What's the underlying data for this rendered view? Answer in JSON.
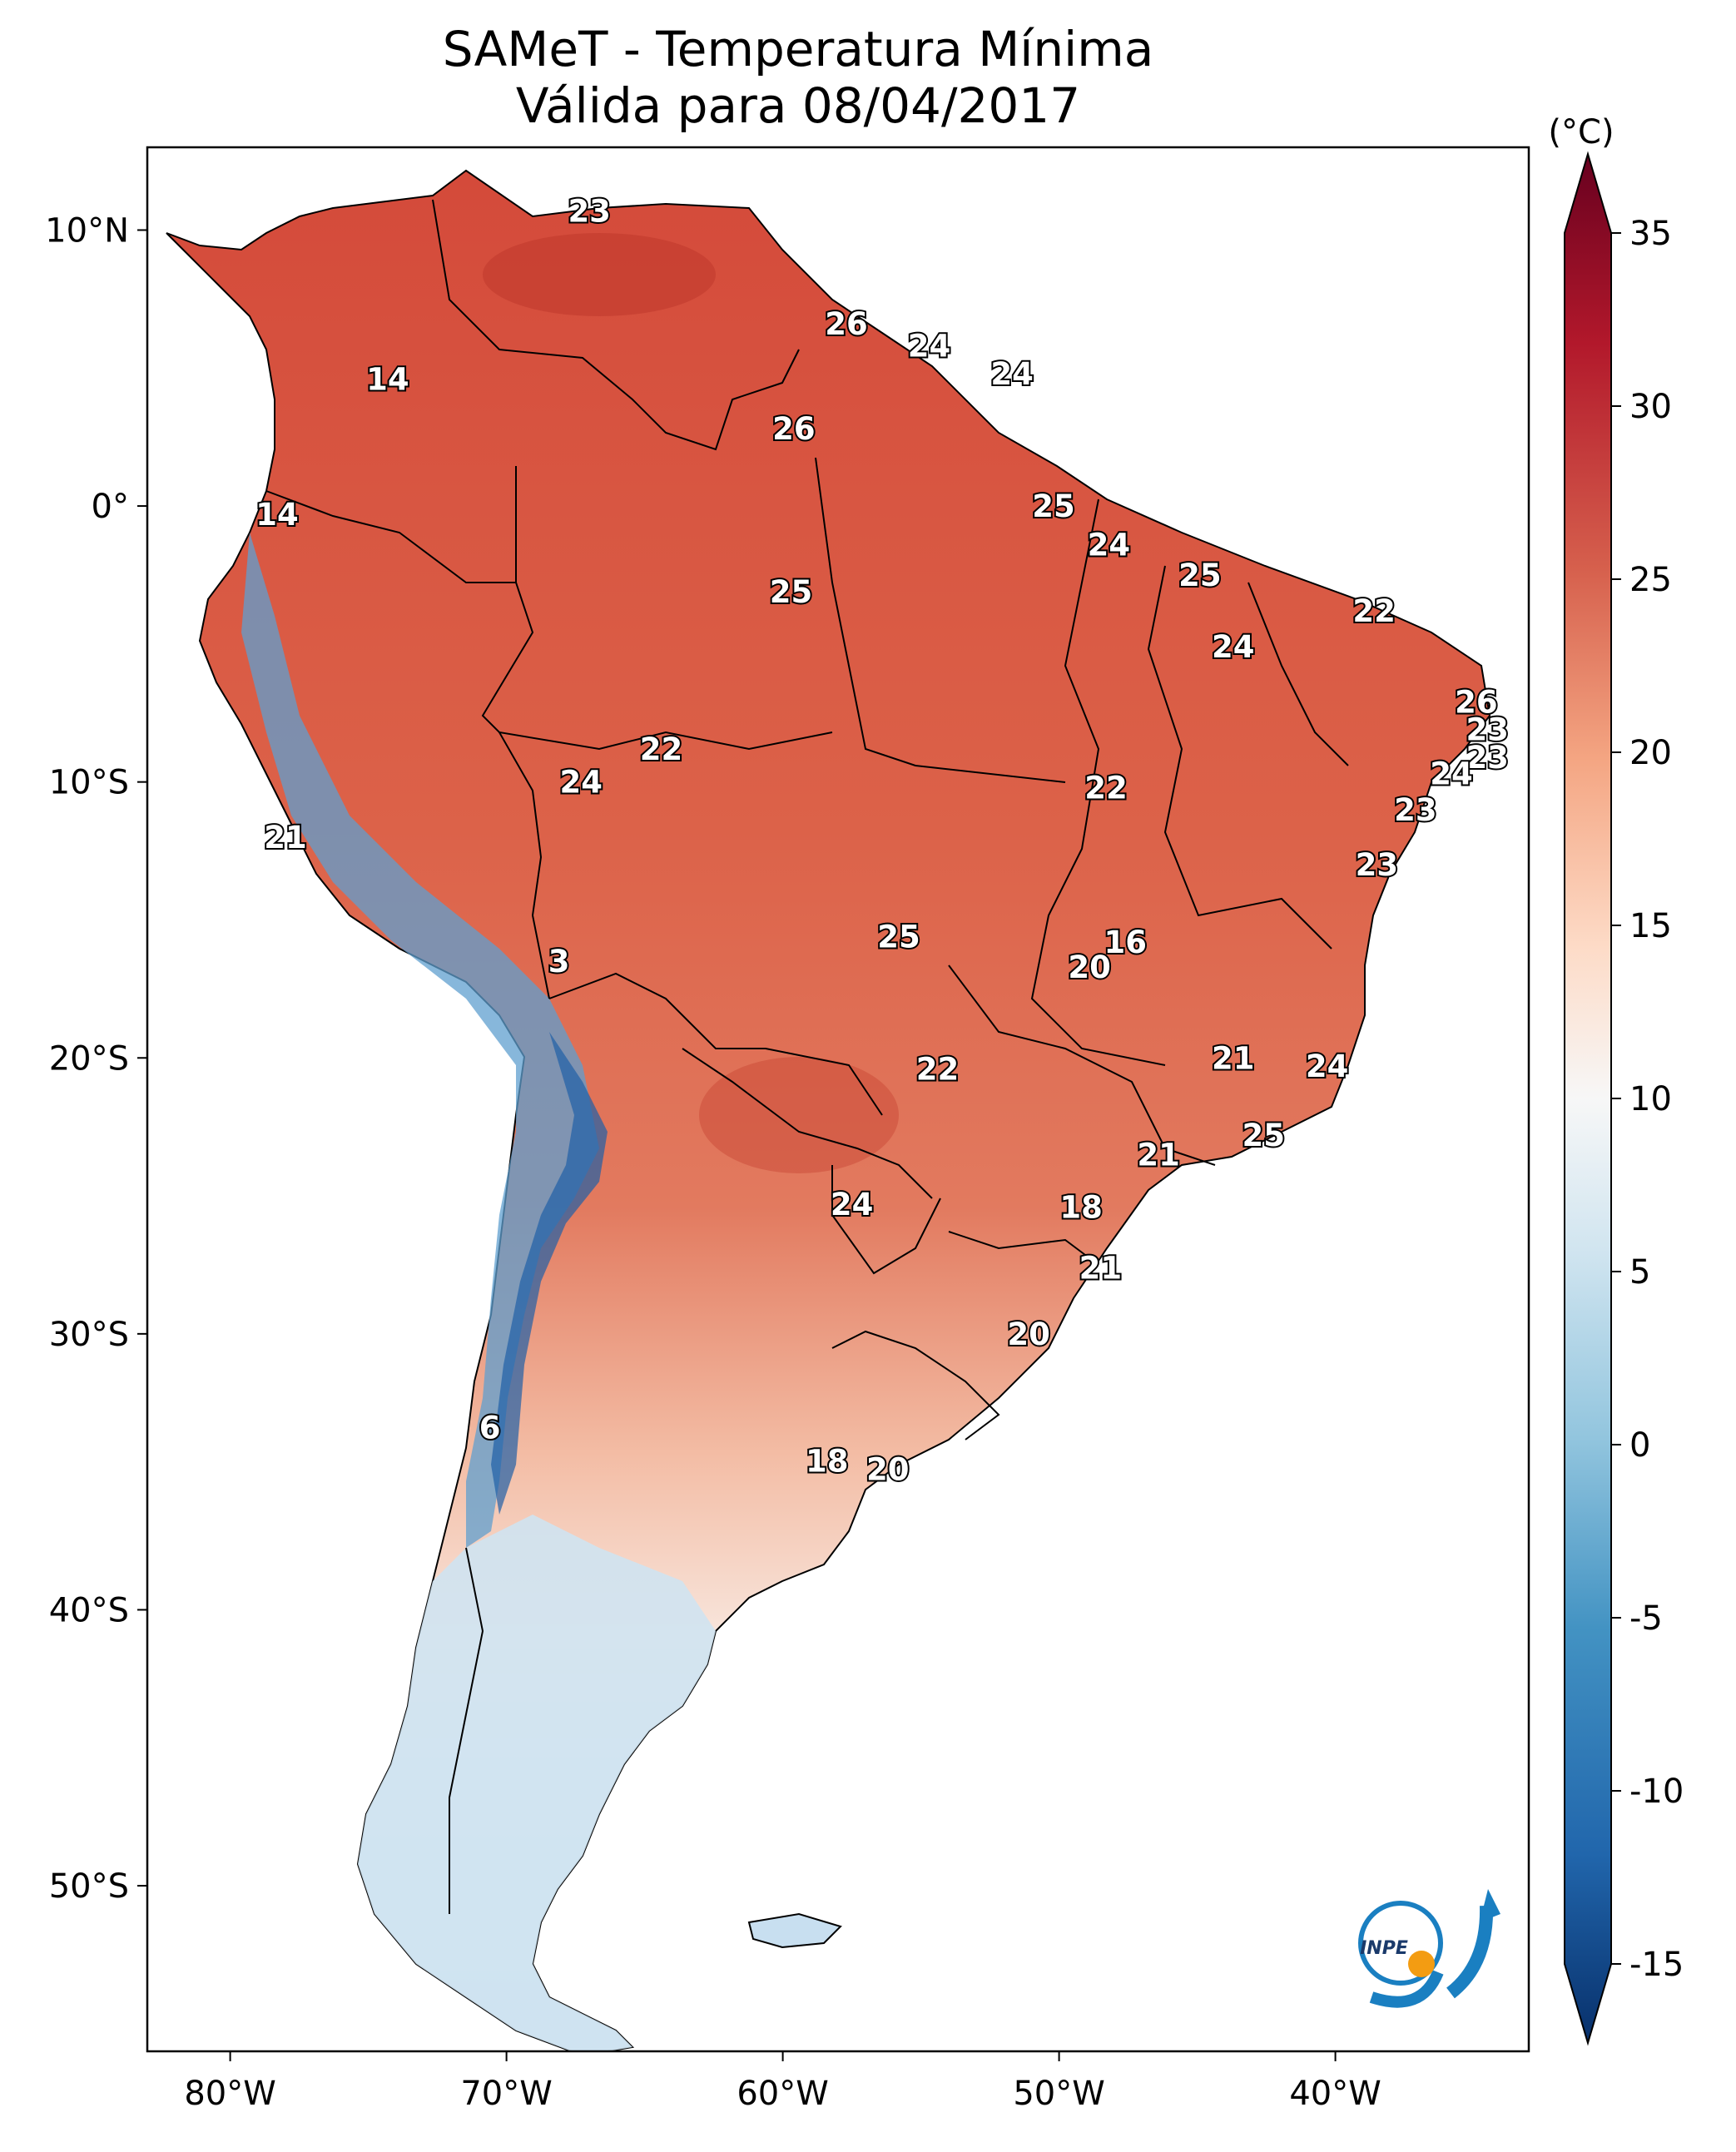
{
  "title_line1": "SAMeT - Temperatura Mínima",
  "title_line2": "Válida para 08/04/2017",
  "colorbar": {
    "unit_label": "(°C)",
    "ticks": [
      "35",
      "30",
      "25",
      "20",
      "15",
      "10",
      "5",
      "0",
      "-5",
      "-10",
      "-15"
    ],
    "tick_values": [
      35,
      30,
      25,
      20,
      15,
      10,
      5,
      0,
      -5,
      -10,
      -15
    ],
    "range": [
      -15,
      35
    ],
    "colors": [
      "#08306b",
      "#2166ac",
      "#4393c3",
      "#92c5de",
      "#d1e5f0",
      "#f7f7f7",
      "#fddbc7",
      "#f4a582",
      "#d6604d",
      "#b2182b",
      "#67001f"
    ]
  },
  "axes": {
    "lat_labels": [
      "10°N",
      "0°",
      "10°S",
      "20°S",
      "30°S",
      "40°S",
      "50°S"
    ],
    "lat_values": [
      10,
      0,
      -10,
      -20,
      -30,
      -40,
      -50
    ],
    "lon_labels": [
      "80°W",
      "70°W",
      "60°W",
      "50°W",
      "40°W"
    ],
    "lon_values": [
      -80,
      -70,
      -60,
      -50,
      -40
    ],
    "lon_range": [
      -83,
      -33
    ],
    "lat_range": [
      -56,
      13
    ]
  },
  "station_values": [
    {
      "v": "23",
      "lon": -67,
      "lat": 10.7
    },
    {
      "v": "14",
      "lon": -74.3,
      "lat": 4.6
    },
    {
      "v": "26",
      "lon": -57.7,
      "lat": 6.6
    },
    {
      "v": "24",
      "lon": -54.7,
      "lat": 5.8
    },
    {
      "v": "24",
      "lon": -51.7,
      "lat": 4.8
    },
    {
      "v": "26",
      "lon": -59.6,
      "lat": 2.8
    },
    {
      "v": "14",
      "lon": -78.3,
      "lat": -0.3
    },
    {
      "v": "25",
      "lon": -50.2,
      "lat": 0.0
    },
    {
      "v": "24",
      "lon": -48.2,
      "lat": -1.4
    },
    {
      "v": "25",
      "lon": -59.7,
      "lat": -3.1
    },
    {
      "v": "25",
      "lon": -44.9,
      "lat": -2.5
    },
    {
      "v": "22",
      "lon": -38.6,
      "lat": -3.8
    },
    {
      "v": "24",
      "lon": -43.7,
      "lat": -5.1
    },
    {
      "v": "26",
      "lon": -34.9,
      "lat": -7.1
    },
    {
      "v": "23",
      "lon": -34.5,
      "lat": -8.1
    },
    {
      "v": "23",
      "lon": -34.5,
      "lat": -9.1
    },
    {
      "v": "22",
      "lon": -64.4,
      "lat": -8.8
    },
    {
      "v": "24",
      "lon": -67.3,
      "lat": -10.0
    },
    {
      "v": "22",
      "lon": -48.3,
      "lat": -10.2
    },
    {
      "v": "24",
      "lon": -35.8,
      "lat": -9.7
    },
    {
      "v": "23",
      "lon": -37.1,
      "lat": -11.0
    },
    {
      "v": "21",
      "lon": -78.0,
      "lat": -12.0
    },
    {
      "v": "23",
      "lon": -38.5,
      "lat": -13.0
    },
    {
      "v": "25",
      "lon": -55.8,
      "lat": -15.6
    },
    {
      "v": "16",
      "lon": -47.6,
      "lat": -15.8
    },
    {
      "v": "20",
      "lon": -48.9,
      "lat": -16.7
    },
    {
      "v": "3",
      "lon": -68.1,
      "lat": -16.5
    },
    {
      "v": "21",
      "lon": -43.7,
      "lat": -20.0
    },
    {
      "v": "24",
      "lon": -40.3,
      "lat": -20.3
    },
    {
      "v": "22",
      "lon": -54.4,
      "lat": -20.4
    },
    {
      "v": "25",
      "lon": -42.6,
      "lat": -22.8
    },
    {
      "v": "21",
      "lon": -46.4,
      "lat": -23.5
    },
    {
      "v": "18",
      "lon": -49.2,
      "lat": -25.4
    },
    {
      "v": "24",
      "lon": -57.5,
      "lat": -25.3
    },
    {
      "v": "21",
      "lon": -48.5,
      "lat": -27.6
    },
    {
      "v": "20",
      "lon": -51.1,
      "lat": -30.0
    },
    {
      "v": "6",
      "lon": -70.6,
      "lat": -33.4
    },
    {
      "v": "18",
      "lon": -58.4,
      "lat": -34.6
    },
    {
      "v": "20",
      "lon": -56.2,
      "lat": -34.9
    }
  ],
  "logo_text": "INPE"
}
